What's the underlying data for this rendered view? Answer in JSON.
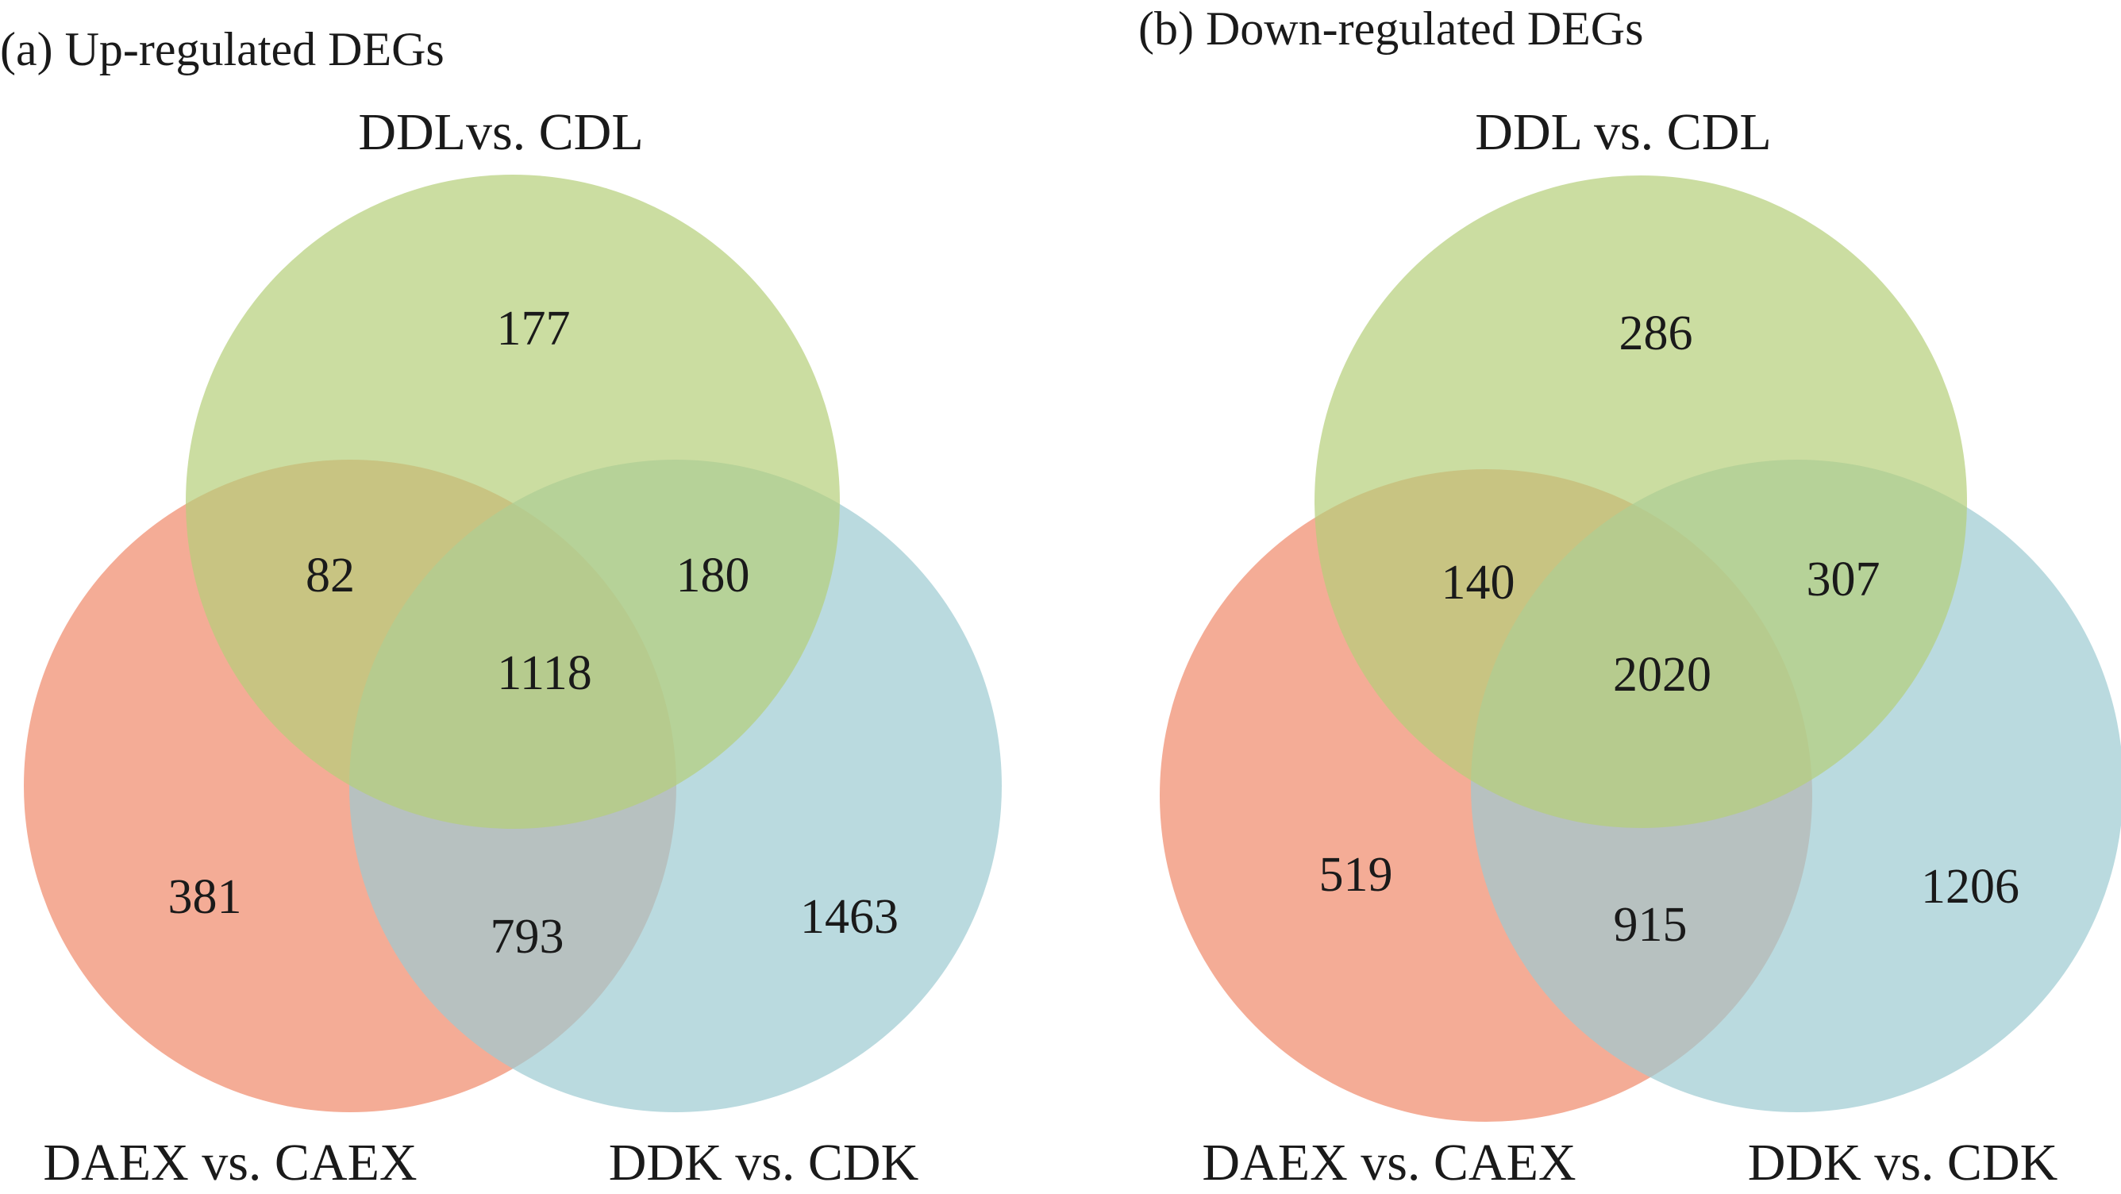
{
  "colors": {
    "set_top": "#b5cf79",
    "set_left": "#ef896a",
    "set_right": "#9ccbd2",
    "text": "#1a1a1a",
    "background": "#ffffff"
  },
  "panels": [
    {
      "title": "(a) Up-regulated DEGs",
      "labels": {
        "top": "DDLvs. CDL",
        "left": "DAEX vs. CAEX",
        "right": "DDK vs. CDK"
      },
      "counts": {
        "top_only": "177",
        "left_only": "381",
        "right_only": "1463",
        "top_left": "82",
        "top_right": "180",
        "left_right": "793",
        "all_three": "1118"
      }
    },
    {
      "title": "(b) Down-regulated DEGs",
      "labels": {
        "top": "DDL vs. CDL",
        "left": "DAEX vs. CAEX",
        "right": "DDK vs. CDK"
      },
      "counts": {
        "top_only": "286",
        "left_only": "519",
        "right_only": "1206",
        "top_left": "140",
        "top_right": "307",
        "left_right": "915",
        "all_three": "2020"
      }
    }
  ]
}
